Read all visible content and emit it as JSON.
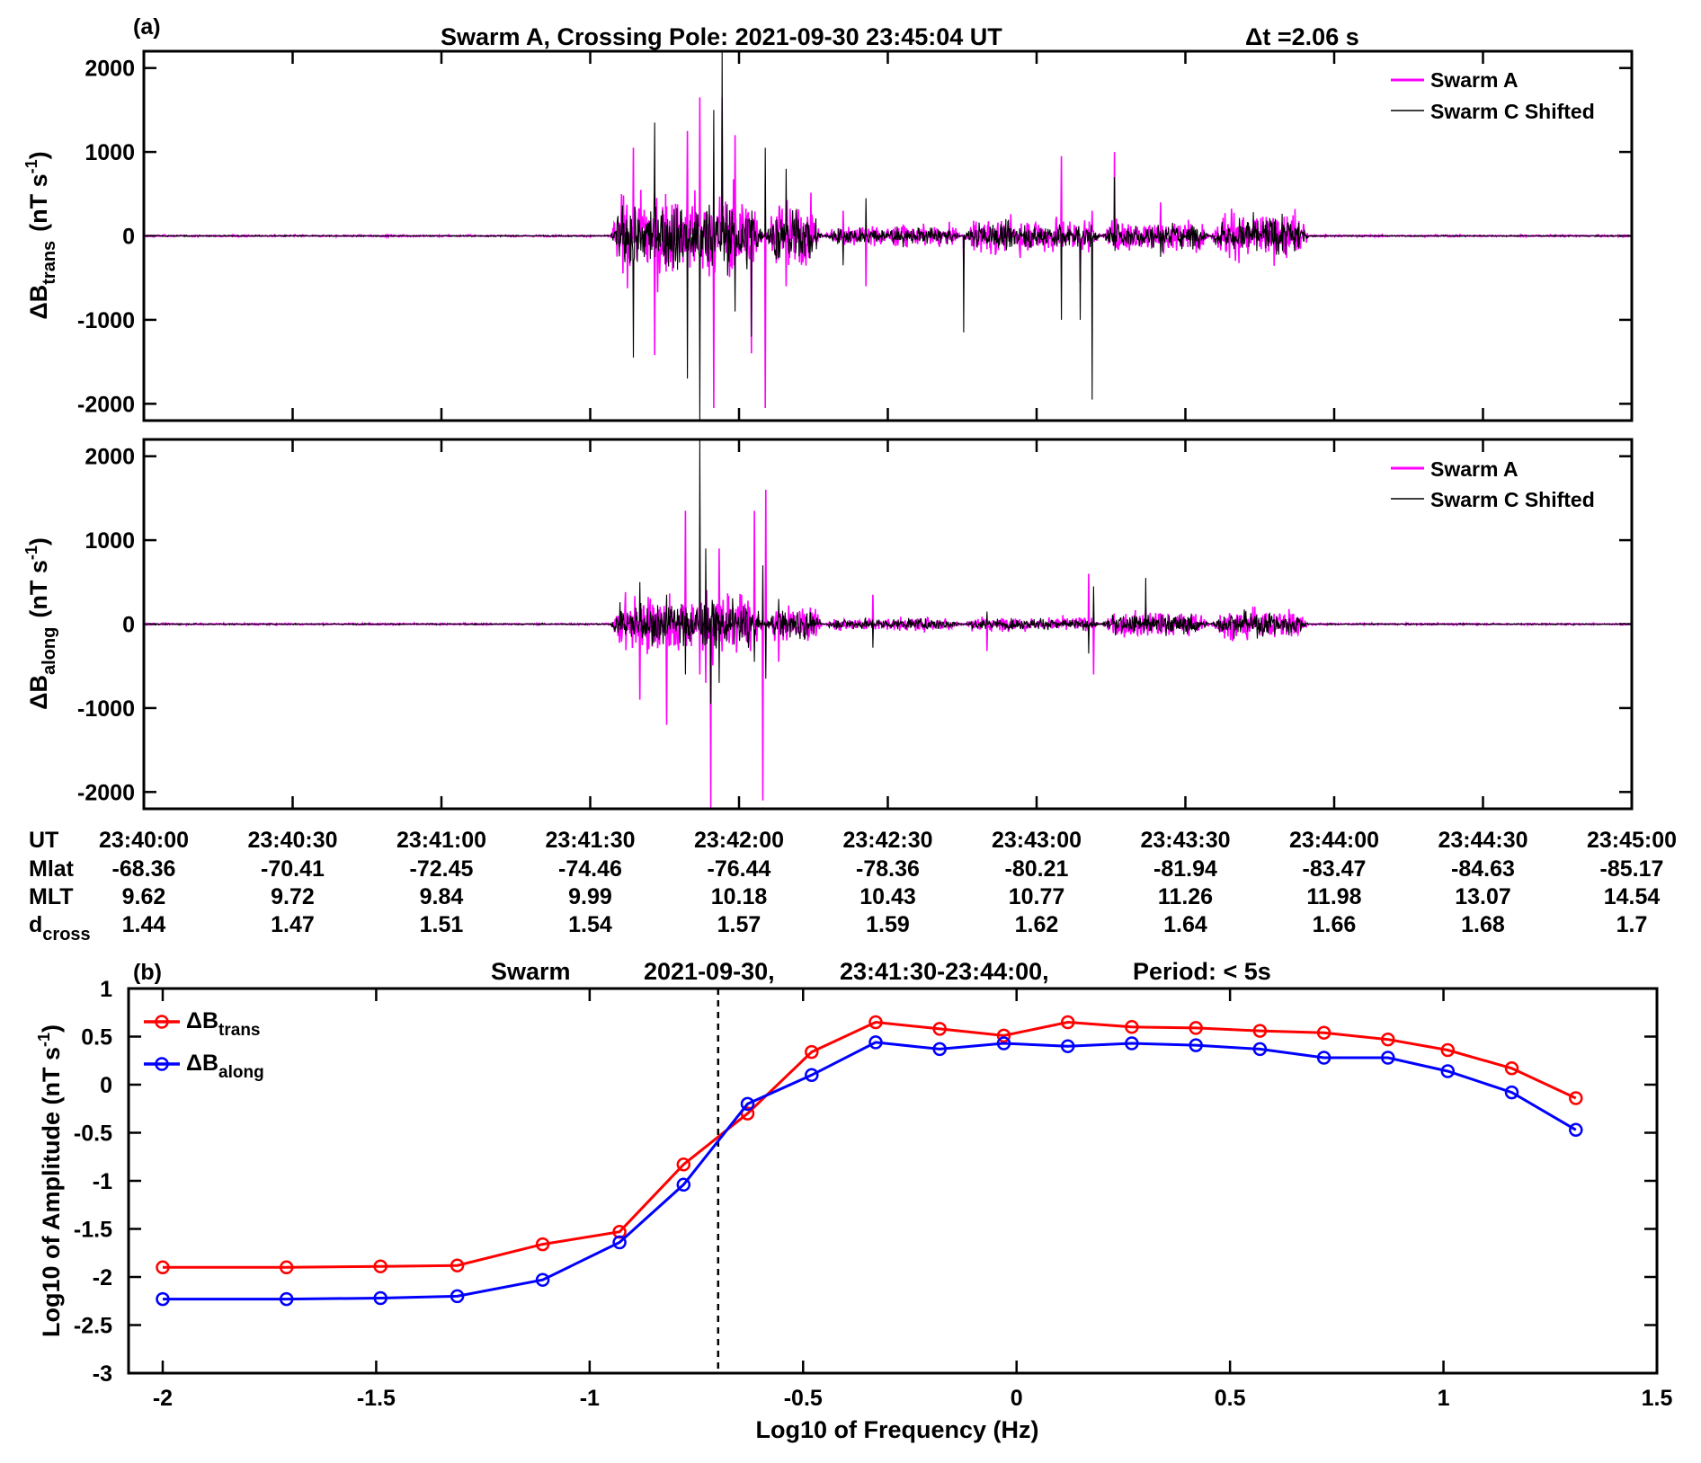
{
  "figure": {
    "panel_a_label": "(a)",
    "panel_a_title": "Swarm A, Crossing Pole: 2021-09-30   23:45:04 UT",
    "panel_a_dt": "Δt =2.06 s",
    "panel_b_label": "(b)",
    "panel_b_title": {
      "part1": "Swarm",
      "part2": "2021-09-30,",
      "part3": "23:41:30-23:44:00,",
      "part4": "Period: < 5s"
    }
  },
  "colors": {
    "swarm_a": "#ff00ff",
    "swarm_c": "#000000",
    "trans": "#ff0000",
    "along": "#0000ff"
  },
  "ephemeris": {
    "row_labels": {
      "ut": "UT",
      "mlat": "Mlat",
      "mlt": "MLT",
      "dcross_main": "d",
      "dcross_sub": "cross"
    },
    "ut": [
      "23:40:00",
      "23:40:30",
      "23:41:00",
      "23:41:30",
      "23:42:00",
      "23:42:30",
      "23:43:00",
      "23:43:30",
      "23:44:00",
      "23:44:30",
      "23:45:00"
    ],
    "mlat": [
      "-68.36",
      "-70.41",
      "-72.45",
      "-74.46",
      "-76.44",
      "-78.36",
      "-80.21",
      "-81.94",
      "-83.47",
      "-84.63",
      "-85.17"
    ],
    "mlt": [
      "9.62",
      "9.72",
      "9.84",
      "9.99",
      "10.18",
      "10.43",
      "10.77",
      "11.26",
      "11.98",
      "13.07",
      "14.54"
    ],
    "dcross": [
      "1.44",
      "1.47",
      "1.51",
      "1.54",
      "1.57",
      "1.59",
      "1.62",
      "1.64",
      "1.66",
      "1.68",
      "1.7"
    ]
  },
  "chart_data": [
    {
      "id": "trans_timeseries",
      "type": "line",
      "ylabel_main": "ΔB",
      "ylabel_sub": "trans",
      "ylabel_unit": "(nT s",
      "ylabel_sup": "-1",
      "ylabel_close": ")",
      "xlim_seconds_after_2340": [
        0,
        300
      ],
      "ylim": [
        -2200,
        2200
      ],
      "yticks": [
        -2000,
        -1000,
        0,
        1000,
        2000
      ],
      "ytick_labels": [
        "-2000",
        "-1000",
        "0",
        "1000",
        "2000"
      ],
      "legend": {
        "position": "top-right",
        "entries": [
          "Swarm A",
          "Swarm C Shifted"
        ]
      },
      "active_bursts": [
        {
          "start": 94,
          "end": 125,
          "amp": 380
        },
        {
          "start": 125,
          "end": 137,
          "amp": 300
        },
        {
          "start": 137,
          "end": 165,
          "amp": 90
        },
        {
          "start": 165,
          "end": 193,
          "amp": 150
        },
        {
          "start": 193,
          "end": 215,
          "amp": 140
        },
        {
          "start": 215,
          "end": 235,
          "amp": 210
        }
      ],
      "spikes": [
        {
          "t": 98.7,
          "a": 1050,
          "s": -1450
        },
        {
          "t": 103.0,
          "a": -1420,
          "s": 1350
        },
        {
          "t": 109.6,
          "a": 1250,
          "s": -1700
        },
        {
          "t": 112.1,
          "a": 1650,
          "s": -2200
        },
        {
          "t": 114.9,
          "a": -2050,
          "s": 1500
        },
        {
          "t": 116.6,
          "a": 1650,
          "s": 2200
        },
        {
          "t": 119.2,
          "a": 1200,
          "s": -900
        },
        {
          "t": 122.5,
          "a": -1400,
          "s": -1200
        },
        {
          "t": 125.3,
          "a": -2050,
          "s": 1050
        },
        {
          "t": 129.5,
          "a": -600,
          "s": 800
        },
        {
          "t": 141.0,
          "a": 300,
          "s": -350
        },
        {
          "t": 145.6,
          "a": -600,
          "s": 450
        },
        {
          "t": 165.3,
          "a": -350,
          "s": -1150
        },
        {
          "t": 185.0,
          "a": 950,
          "s": -1000
        },
        {
          "t": 188.8,
          "a": -550,
          "s": -1000
        },
        {
          "t": 191.2,
          "a": 300,
          "s": -1950
        },
        {
          "t": 195.7,
          "a": 1000,
          "s": 700
        },
        {
          "t": 205.0,
          "a": 400,
          "s": -250
        }
      ]
    },
    {
      "id": "along_timeseries",
      "type": "line",
      "ylabel_main": "ΔB",
      "ylabel_sub": "along",
      "ylabel_unit": "(nT s",
      "ylabel_sup": "-1",
      "ylabel_close": ")",
      "xlim_seconds_after_2340": [
        0,
        300
      ],
      "ylim": [
        -2200,
        2200
      ],
      "yticks": [
        -2000,
        -1000,
        0,
        1000,
        2000
      ],
      "ytick_labels": [
        "-2000",
        "-1000",
        "0",
        "1000",
        "2000"
      ],
      "legend": {
        "position": "top-right",
        "entries": [
          "Swarm A",
          "Swarm C Shifted"
        ]
      },
      "active_bursts": [
        {
          "start": 94,
          "end": 125,
          "amp": 250
        },
        {
          "start": 125,
          "end": 137,
          "amp": 160
        },
        {
          "start": 137,
          "end": 165,
          "amp": 60
        },
        {
          "start": 165,
          "end": 193,
          "amp": 60
        },
        {
          "start": 193,
          "end": 215,
          "amp": 110
        },
        {
          "start": 215,
          "end": 235,
          "amp": 130
        }
      ],
      "spikes": [
        {
          "t": 100.0,
          "a": -900,
          "s": 500
        },
        {
          "t": 105.4,
          "a": -1200,
          "s": 350
        },
        {
          "t": 109.2,
          "a": 1350,
          "s": -600
        },
        {
          "t": 112.1,
          "a": -600,
          "s": 2200
        },
        {
          "t": 113.3,
          "a": -700,
          "s": 900
        },
        {
          "t": 114.3,
          "a": -2200,
          "s": -950
        },
        {
          "t": 116.0,
          "a": 900,
          "s": -700
        },
        {
          "t": 123.1,
          "a": 1350,
          "s": -450
        },
        {
          "t": 124.8,
          "a": -2100,
          "s": 700
        },
        {
          "t": 125.4,
          "a": 1600,
          "s": -650
        },
        {
          "t": 128.0,
          "a": -450,
          "s": 300
        },
        {
          "t": 147.0,
          "a": 350,
          "s": -280
        },
        {
          "t": 170.0,
          "a": -320,
          "s": 150
        },
        {
          "t": 190.5,
          "a": 600,
          "s": -350
        },
        {
          "t": 191.5,
          "a": -600,
          "s": 450
        },
        {
          "t": 202.0,
          "a": 200,
          "s": 550
        }
      ]
    },
    {
      "id": "spectrum",
      "type": "line",
      "xlabel": "Log10 of Frequency (Hz)",
      "ylabel_main": "Log10 of Amplitude (nT s",
      "ylabel_sup": "-1",
      "ylabel_close": ")",
      "xlim": [
        -2.08,
        1.5
      ],
      "ylim": [
        -3,
        1
      ],
      "xticks": [
        -2,
        -1.5,
        -1,
        -0.5,
        0,
        0.5,
        1,
        1.5
      ],
      "xtick_labels": [
        "-2",
        "-1.5",
        "-1",
        "-0.5",
        "0",
        "0.5",
        "1",
        "1.5"
      ],
      "yticks": [
        1,
        0.5,
        0,
        -0.5,
        -1,
        -1.5,
        -2,
        -2.5,
        -3
      ],
      "ytick_labels": [
        "1",
        "0.5",
        "0",
        "-0.5",
        "-1",
        "-1.5",
        "-2",
        "-2.5",
        "-3"
      ],
      "vertical_line_x": -0.699,
      "legend": {
        "position": "top-left"
      },
      "x": [
        -2.0,
        -1.71,
        -1.49,
        -1.31,
        -1.11,
        -0.93,
        -0.78,
        -0.63,
        -0.48,
        -0.33,
        -0.18,
        -0.03,
        0.12,
        0.27,
        0.42,
        0.57,
        0.72,
        0.87,
        1.01,
        1.16,
        1.31
      ],
      "series": [
        {
          "name_main": "ΔB",
          "name_sub": "trans",
          "color": "#ff0000",
          "values": [
            -1.9,
            -1.9,
            -1.89,
            -1.88,
            -1.66,
            -1.53,
            -0.83,
            -0.3,
            0.34,
            0.65,
            0.58,
            0.51,
            0.65,
            0.6,
            0.59,
            0.56,
            0.54,
            0.47,
            0.36,
            0.17,
            -0.14
          ]
        },
        {
          "name_main": "ΔB",
          "name_sub": "along",
          "color": "#0000ff",
          "values": [
            -2.23,
            -2.23,
            -2.22,
            -2.2,
            -2.03,
            -1.64,
            -1.04,
            -0.2,
            0.1,
            0.44,
            0.37,
            0.43,
            0.4,
            0.43,
            0.41,
            0.37,
            0.28,
            0.28,
            0.14,
            -0.08,
            -0.47
          ]
        }
      ]
    }
  ]
}
